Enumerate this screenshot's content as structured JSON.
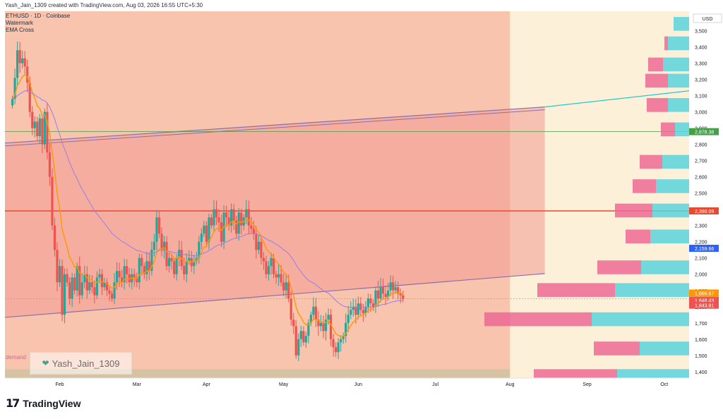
{
  "header": {
    "created_text": "Yash_Jain_1309 created with TradingView.com, Aug 03, 2026 16:55 UTC+5:30"
  },
  "legend": {
    "symbol": "ETHUSD · 1D · Coinbase",
    "indicator1": "Watermark",
    "indicator2": "EMA Cross"
  },
  "watermark": {
    "text": "Yash_Jain_1309",
    "icon": "heart-icon"
  },
  "zone_label": "demand",
  "footer": {
    "brand": "TradingView",
    "logo_icon": "tv-logo-icon"
  },
  "colors": {
    "bull": "#26a69a",
    "bear": "#ef5350",
    "ema_fast": "#ff9800",
    "ema_slow": "#9c7ee0",
    "bg_zone": "#f8c4ad",
    "future_zone": "#fdf0d8",
    "channel_line": "#8b6fa8",
    "resistance": "#e84a2f",
    "trendline": "#26c6da",
    "vp_up": "#59d4dc",
    "vp_down": "#ec6a95"
  },
  "chart_data": {
    "type": "candlestick",
    "symbol": "ETHUSD",
    "timeframe": "1D",
    "exchange": "Coinbase",
    "currency": "USD",
    "y_ticks": [
      1400,
      1500,
      1600,
      1700,
      1800,
      1900,
      2000,
      2100,
      2200,
      2300,
      2400,
      2500,
      2600,
      2700,
      2800,
      2900,
      3000,
      3100,
      3200,
      3300,
      3400,
      3500
    ],
    "y_tick_labels": [
      "1,400",
      "1,500",
      "1,600",
      "1,700",
      "1,800",
      "1,900",
      "2,000",
      "2,100",
      "2,200",
      "2,300",
      "2,400",
      "2,500",
      "2,600",
      "2,700",
      "2,800",
      "2,900",
      "3,000",
      "3,100",
      "3,200",
      "3,300",
      "3,400",
      "3,500"
    ],
    "ylim": [
      1360,
      3620
    ],
    "x_labels": [
      "Feb",
      "Mar",
      "Apr",
      "May",
      "Jun",
      "Jul",
      "Aug",
      "Sep",
      "Oct"
    ],
    "x_label_day": [
      22,
      53,
      81,
      112,
      142,
      173,
      203,
      234,
      265
    ],
    "x_range_days": [
      0,
      275
    ],
    "last_bar_day": 203,
    "horizontal_levels": [
      {
        "price": 2878.38,
        "label": "2,878.38",
        "color": "#43a047"
      },
      {
        "price": 2390.09,
        "label": "2,390.09",
        "color": "#e84a2f"
      }
    ],
    "price_badges": [
      {
        "price": 2159.66,
        "label": "2,159.66",
        "color": "#2962ff"
      },
      {
        "price": 1866.67,
        "label": "1,866.67",
        "color": "#ff9800"
      },
      {
        "price": 1848.43,
        "label": "1,848.43",
        "color": "#ef5350"
      },
      {
        "price": 1843.81,
        "label": "1,843.81",
        "color": "#ef5350"
      }
    ],
    "closes": [
      3080,
      3210,
      3380,
      3300,
      3330,
      3280,
      3180,
      3000,
      2900,
      2940,
      2850,
      2960,
      2800,
      3000,
      2750,
      2600,
      2300,
      2150,
      1950,
      2050,
      1750,
      2000,
      1950,
      1850,
      1980,
      1900,
      2050,
      1870,
      1950,
      2000,
      1900,
      1950,
      1920,
      1870,
      1980,
      2000,
      1920,
      1950,
      1900,
      1880,
      1850,
      1950,
      2020,
      1980,
      1950,
      2050,
      2000,
      1950,
      2000,
      1980,
      1950,
      2100,
      2050,
      2000,
      2080,
      2020,
      2150,
      2200,
      2350,
      2250,
      2150,
      2200,
      2050,
      2100,
      2080,
      2000,
      2100,
      2150,
      2050,
      2000,
      2080,
      2100,
      2050,
      2080,
      2100,
      2200,
      2250,
      2300,
      2200,
      2350,
      2300,
      2400,
      2350,
      2320,
      2200,
      2380,
      2350,
      2300,
      2400,
      2330,
      2250,
      2380,
      2300,
      2350,
      2400,
      2300,
      2280,
      2250,
      2150,
      2200,
      2100,
      2080,
      2000,
      2050,
      2100,
      2000,
      1980,
      2000,
      1950,
      1900,
      1950,
      1850,
      1720,
      1680,
      1500,
      1600,
      1650,
      1580,
      1620,
      1700,
      1750,
      1800,
      1720,
      1680,
      1700,
      1650,
      1720,
      1750,
      1600,
      1550,
      1520,
      1580,
      1600,
      1620,
      1700,
      1750,
      1780,
      1800,
      1750,
      1820,
      1780,
      1760,
      1800,
      1850,
      1820,
      1800,
      1900,
      1850,
      1920,
      1880,
      1860,
      1900,
      1950,
      1900,
      1920,
      1880,
      1870,
      1848
    ]
  }
}
